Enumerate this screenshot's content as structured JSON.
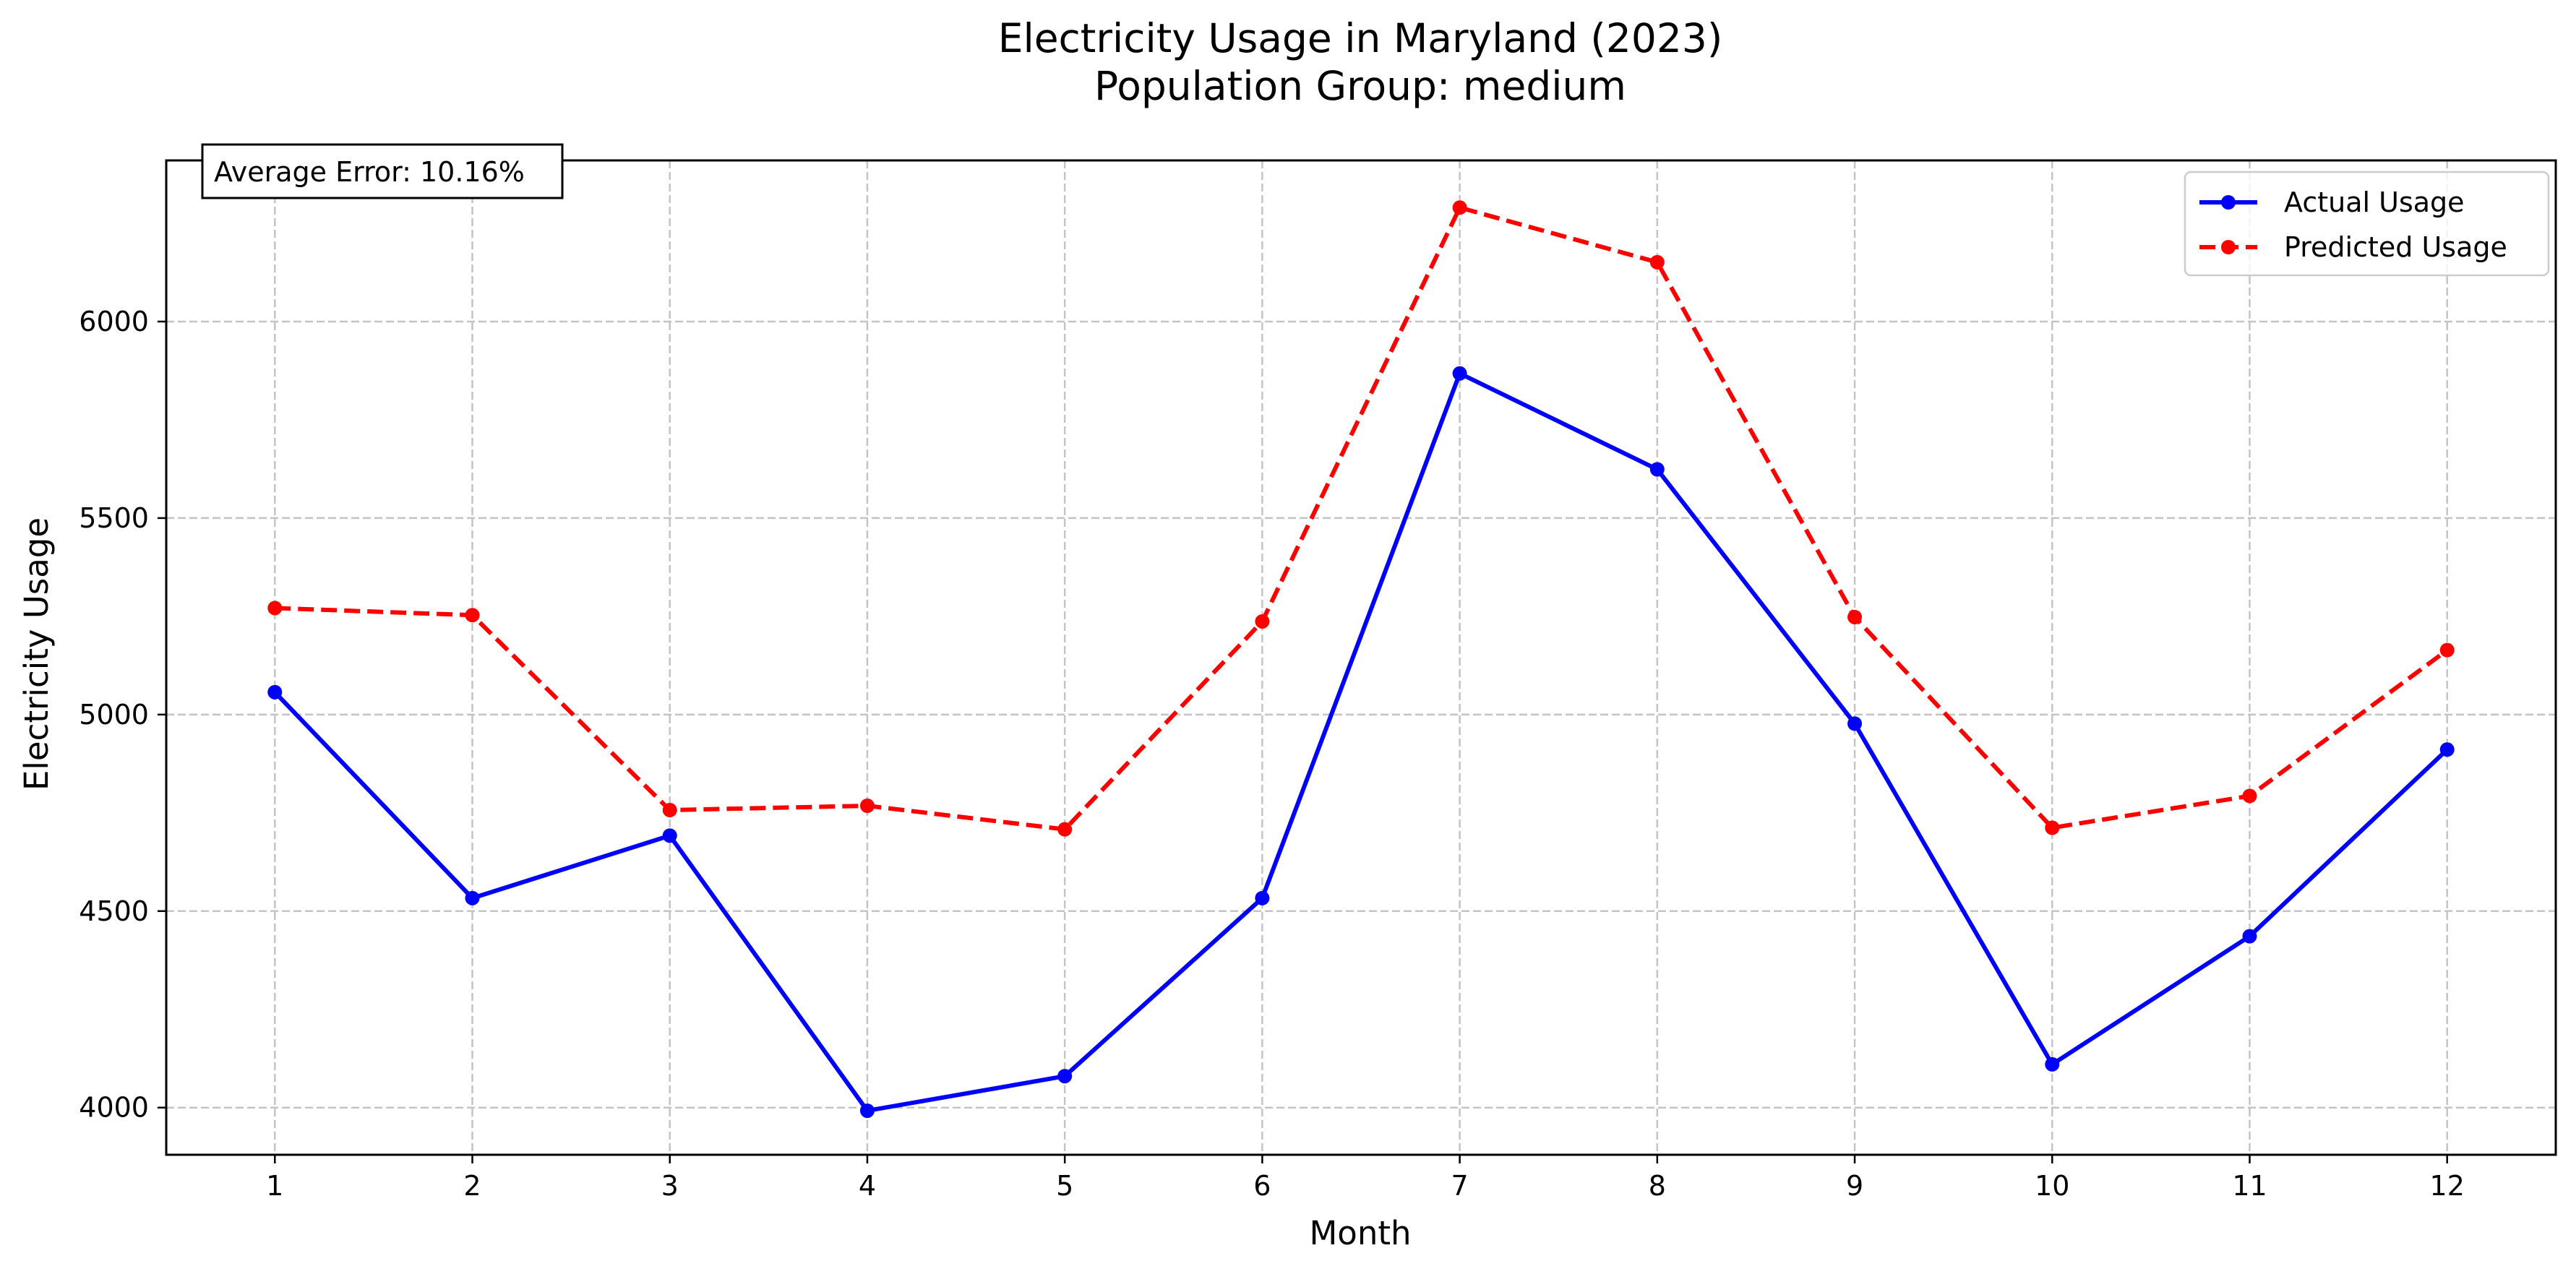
{
  "chart_data": {
    "type": "line",
    "title": "Electricity Usage in Maryland (2023)",
    "subtitle": "Population Group: medium",
    "xlabel": "Month",
    "ylabel": "Electricity Usage",
    "x": [
      1,
      2,
      3,
      4,
      5,
      6,
      7,
      8,
      9,
      10,
      11,
      12
    ],
    "x_ticks": [
      "1",
      "2",
      "3",
      "4",
      "5",
      "6",
      "7",
      "8",
      "9",
      "10",
      "11",
      "12"
    ],
    "y_ticks": [
      "4000",
      "4500",
      "5000",
      "5500",
      "6000"
    ],
    "xlim": [
      0.45,
      12.55
    ],
    "ylim": [
      3880,
      6410
    ],
    "grid": true,
    "legend_position": "top-right",
    "series": [
      {
        "name": "Actual Usage",
        "color": "#0000ff",
        "style": "solid",
        "marker": "circle",
        "values": [
          5057,
          4533,
          4692,
          3992,
          4080,
          4533,
          5868,
          5624,
          4977,
          4110,
          4436,
          4911
        ]
      },
      {
        "name": "Predicted Usage",
        "color": "#ff0000",
        "style": "dashed",
        "marker": "circle",
        "values": [
          5271,
          5253,
          4757,
          4768,
          4708,
          5237,
          6290,
          6151,
          5248,
          4712,
          4793,
          5164
        ]
      }
    ],
    "annotations": [
      {
        "text": "Average Error: 10.16%",
        "position": "top-left"
      }
    ]
  }
}
